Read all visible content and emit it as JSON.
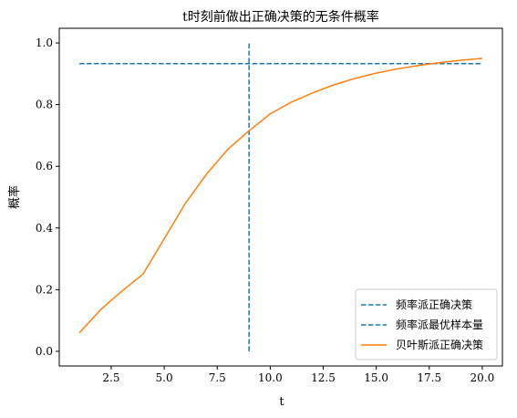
{
  "chart_data": {
    "type": "line",
    "title": "t时刻前做出正确决策的无条件概率",
    "xlabel": "t",
    "ylabel": "概率",
    "xlim": [
      0.05,
      20.95
    ],
    "ylim": [
      -0.0475,
      1.0475
    ],
    "xticks": [
      2.5,
      5.0,
      7.5,
      10.0,
      12.5,
      15.0,
      17.5,
      20.0
    ],
    "xtick_labels": [
      "2.5",
      "5.0",
      "7.5",
      "10.0",
      "12.5",
      "15.0",
      "17.5",
      "20.0"
    ],
    "yticks": [
      0.0,
      0.2,
      0.4,
      0.6,
      0.8,
      1.0
    ],
    "ytick_labels": [
      "0.0",
      "0.2",
      "0.4",
      "0.6",
      "0.8",
      "1.0"
    ],
    "grid": false,
    "legend_position": "lower right",
    "series": [
      {
        "name": "频率派正确决策",
        "kind": "hline",
        "y": 0.933,
        "xmin": 1,
        "xmax": 20,
        "style": "dashed",
        "color": "#1f77b4"
      },
      {
        "name": "频率派最优样本量",
        "kind": "vline",
        "x": 9,
        "ymin": 0,
        "ymax": 1,
        "style": "dashed",
        "color": "#1f77b4"
      },
      {
        "name": "贝叶斯派正确决策",
        "kind": "line",
        "style": "solid",
        "color": "#ff7f0e",
        "x": [
          1,
          2,
          3,
          4,
          5,
          6,
          7,
          8,
          9,
          10,
          11,
          12,
          13,
          14,
          15,
          16,
          17,
          18,
          19,
          20
        ],
        "y": [
          0.06,
          0.135,
          0.195,
          0.25,
          0.365,
          0.48,
          0.575,
          0.655,
          0.715,
          0.77,
          0.808,
          0.838,
          0.864,
          0.885,
          0.902,
          0.916,
          0.927,
          0.936,
          0.944,
          0.95
        ]
      }
    ]
  }
}
